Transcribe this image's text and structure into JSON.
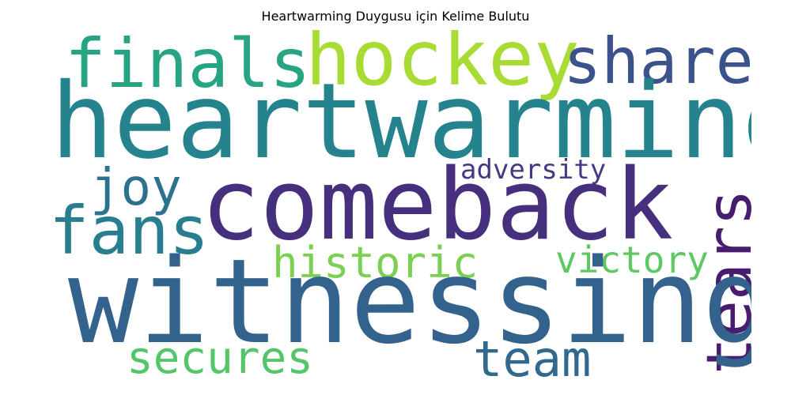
{
  "figure": {
    "title": "Heartwarming Duygusu için Kelime Bulutu"
  },
  "words": [
    {
      "text": "finals",
      "color": "#26a484"
    },
    {
      "text": "hockey",
      "color": "#a8db34"
    },
    {
      "text": "share",
      "color": "#3b528b"
    },
    {
      "text": "heartwarming",
      "color": "#25838e"
    },
    {
      "text": "adversity",
      "color": "#443983"
    },
    {
      "text": "joy",
      "color": "#2c728e"
    },
    {
      "text": "comeback",
      "color": "#46307e"
    },
    {
      "text": "fans",
      "color": "#287d8e"
    },
    {
      "text": "tears",
      "color": "#481d6f"
    },
    {
      "text": "historic",
      "color": "#7ad151"
    },
    {
      "text": "victory",
      "color": "#5ec962"
    },
    {
      "text": "witnessing",
      "color": "#33638d"
    },
    {
      "text": "secures",
      "color": "#54c568"
    },
    {
      "text": "team",
      "color": "#31688e"
    }
  ]
}
